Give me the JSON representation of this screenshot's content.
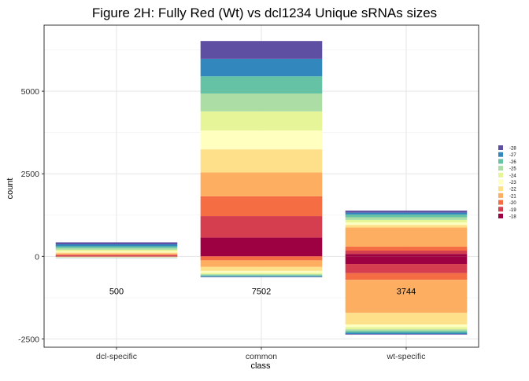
{
  "chart_data": {
    "type": "bar",
    "title": "Figure 2H: Fully Red (Wt) vs dcl1234 Unique sRNAs sizes",
    "xlabel": "class",
    "ylabel": "count",
    "categories": [
      "dcl-specific",
      "common",
      "wt-specific"
    ],
    "ylim": [
      -2750,
      7000
    ],
    "yticks": [
      -2500,
      0,
      2500,
      5000
    ],
    "grid": true,
    "legend_position": "right",
    "legend": [
      "-28",
      "-27",
      "-26",
      "-25",
      "-24",
      "-23",
      "-22",
      "-21",
      "-20",
      "-19",
      "-18"
    ],
    "colors": {
      "-18": "#9e0142",
      "-19": "#d53e4f",
      "-20": "#f46d43",
      "-21": "#fdae61",
      "-22": "#fee08b",
      "-23": "#ffffbf",
      "-24": "#e6f598",
      "-25": "#abdda4",
      "-26": "#66c2a5",
      "-27": "#3288bd",
      "-28": "#5e4fa2"
    },
    "series": [
      {
        "name": "-18",
        "values": [
          15,
          570,
          75
        ]
      },
      {
        "name": "-19",
        "values": [
          20,
          650,
          100
        ]
      },
      {
        "name": "-20",
        "values": [
          25,
          600,
          120
        ]
      },
      {
        "name": "-21",
        "values": [
          30,
          720,
          580
        ]
      },
      {
        "name": "-22",
        "values": [
          30,
          700,
          80
        ]
      },
      {
        "name": "-23",
        "values": [
          35,
          570,
          70
        ]
      },
      {
        "name": "-24",
        "values": [
          45,
          580,
          80
        ]
      },
      {
        "name": "-25",
        "values": [
          50,
          540,
          80
        ]
      },
      {
        "name": "-26",
        "values": [
          55,
          520,
          80
        ]
      },
      {
        "name": "-27",
        "values": [
          60,
          530,
          60
        ]
      },
      {
        "name": "-28",
        "values": [
          60,
          540,
          60
        ]
      }
    ],
    "negative_series": [
      {
        "name": "-18",
        "values": [
          0,
          0,
          230
        ]
      },
      {
        "name": "-19",
        "values": [
          5,
          0,
          280
        ]
      },
      {
        "name": "-20",
        "values": [
          5,
          120,
          200
        ]
      },
      {
        "name": "-21",
        "values": [
          10,
          200,
          1000
        ]
      },
      {
        "name": "-22",
        "values": [
          5,
          120,
          350
        ]
      },
      {
        "name": "-23",
        "values": [
          5,
          60,
          80
        ]
      },
      {
        "name": "-24",
        "values": [
          5,
          40,
          70
        ]
      },
      {
        "name": "-25",
        "values": [
          5,
          30,
          50
        ]
      },
      {
        "name": "-26",
        "values": [
          5,
          30,
          50
        ]
      },
      {
        "name": "-27",
        "values": [
          5,
          20,
          40
        ]
      },
      {
        "name": "-28",
        "values": [
          0,
          10,
          20
        ]
      }
    ],
    "annotations": [
      {
        "category": "dcl-specific",
        "y": -1050,
        "text": "500"
      },
      {
        "category": "common",
        "y": -1050,
        "text": "7502"
      },
      {
        "category": "wt-specific",
        "y": -1050,
        "text": "3744"
      }
    ]
  }
}
